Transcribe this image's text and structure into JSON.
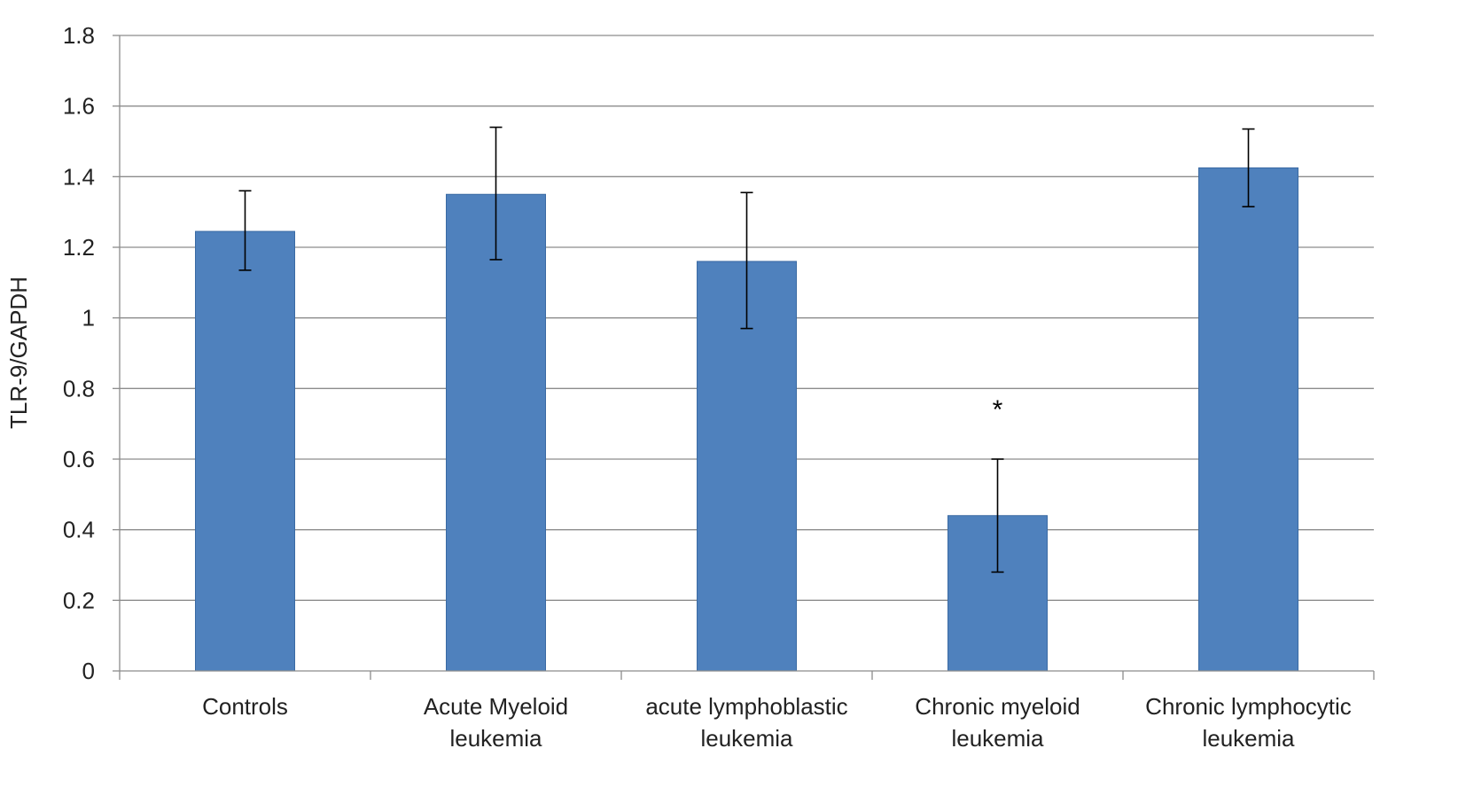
{
  "chart_data": {
    "type": "bar",
    "categories": [
      [
        "Controls"
      ],
      [
        "Acute Myeloid",
        "leukemia"
      ],
      [
        "acute lymphoblastic",
        "leukemia"
      ],
      [
        "Chronic myeloid",
        "leukemia"
      ],
      [
        "Chronic lymphocytic",
        "leukemia"
      ]
    ],
    "values": [
      1.245,
      1.35,
      1.16,
      0.44,
      1.425
    ],
    "error_bars": {
      "upper": [
        1.36,
        1.54,
        1.355,
        0.6,
        1.535
      ],
      "lower": [
        1.135,
        1.165,
        0.97,
        0.28,
        1.315
      ]
    },
    "annotations": [
      {
        "category_index": 3,
        "text": "*",
        "y": 0.74
      }
    ],
    "title": "",
    "xlabel": "",
    "ylabel": "TLR-9/GAPDH",
    "ylim": [
      0,
      1.8
    ],
    "yticks": [
      0,
      0.2,
      0.4,
      0.6,
      0.8,
      1,
      1.2,
      1.4,
      1.6,
      1.8
    ],
    "ytick_labels": [
      "0",
      "0.2",
      "0.4",
      "0.6",
      "0.8",
      "1",
      "1.2",
      "1.4",
      "1.6",
      "1.8"
    ],
    "grid": true,
    "legend": "none",
    "colors": {
      "bar_fill": "#4f81bd",
      "bar_stroke": "#3a6aa3",
      "grid": "#8c8c8c",
      "axis": "#8c8c8c",
      "error_bar": "#000000"
    }
  }
}
